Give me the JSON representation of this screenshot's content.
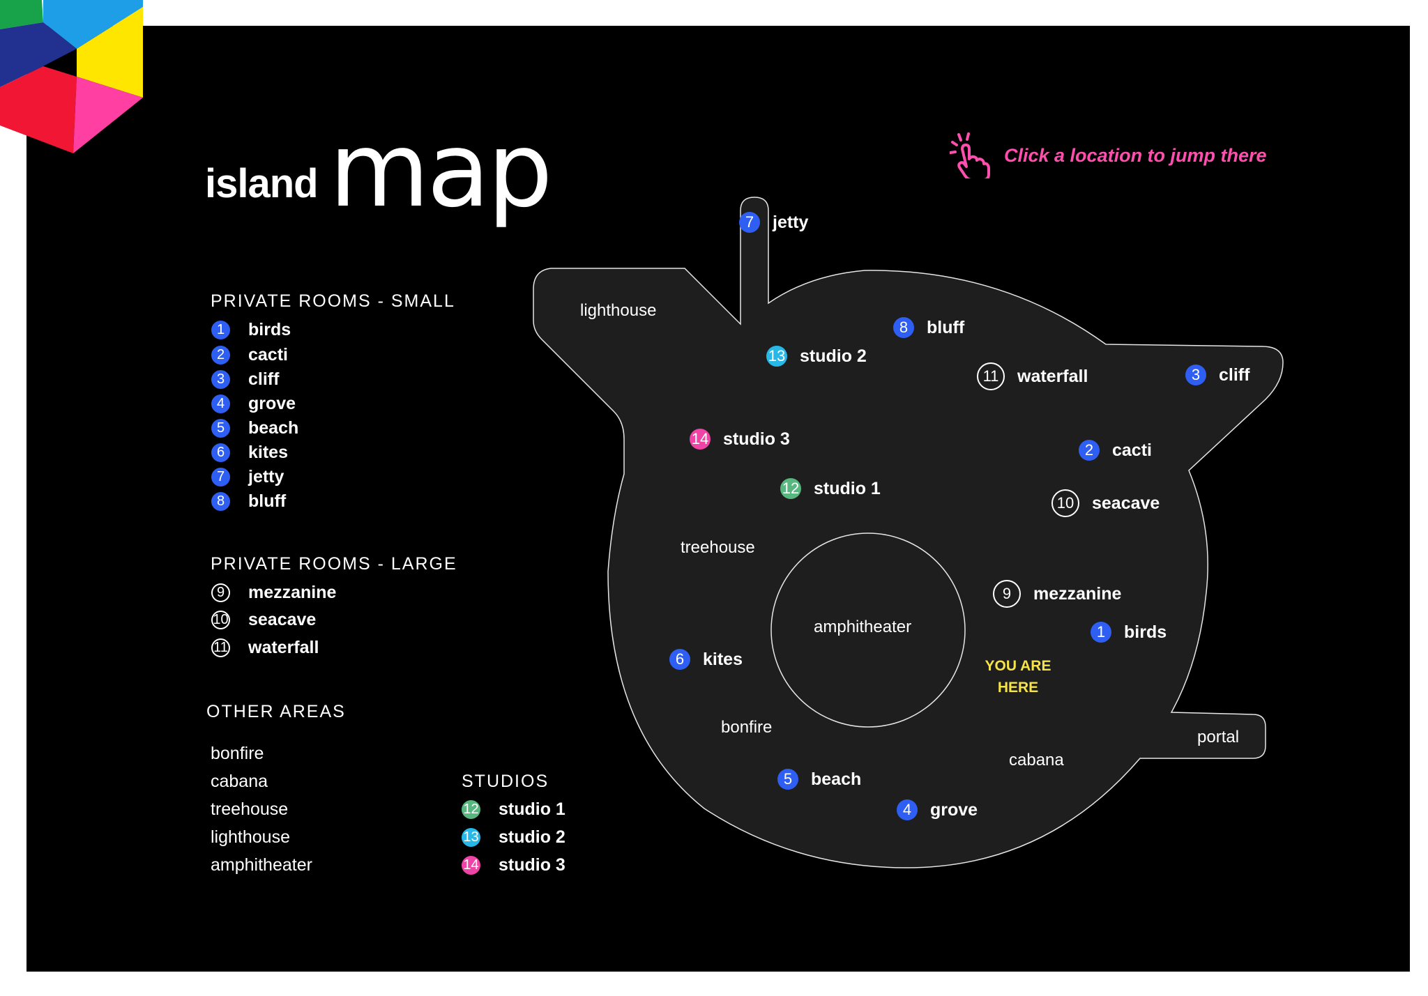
{
  "title": {
    "bold": "island",
    "thin": "map"
  },
  "hint": {
    "text": "Click a location to jump there"
  },
  "colors": {
    "small": "#2f5ff2",
    "studio1": "#57b77e",
    "studio2": "#27b8e8",
    "studio3": "#ef44a5",
    "hint": "#ff4fae",
    "you_are_here": "#f5e34a"
  },
  "legend": {
    "small": {
      "heading": "PRIVATE ROOMS - SMALL",
      "items": [
        {
          "num": "1",
          "label": "birds"
        },
        {
          "num": "2",
          "label": "cacti"
        },
        {
          "num": "3",
          "label": "cliff"
        },
        {
          "num": "4",
          "label": "grove"
        },
        {
          "num": "5",
          "label": "beach"
        },
        {
          "num": "6",
          "label": "kites"
        },
        {
          "num": "7",
          "label": "jetty"
        },
        {
          "num": "8",
          "label": "bluff"
        }
      ]
    },
    "large": {
      "heading": "PRIVATE ROOMS - LARGE",
      "items": [
        {
          "num": "9",
          "label": "mezzanine"
        },
        {
          "num": "10",
          "label": "seacave"
        },
        {
          "num": "11",
          "label": "waterfall"
        }
      ]
    },
    "other": {
      "heading": "OTHER AREAS",
      "items": [
        "bonfire",
        "cabana",
        "treehouse",
        "lighthouse",
        "amphitheater"
      ]
    },
    "studios": {
      "heading": "STUDIOS",
      "items": [
        {
          "num": "12",
          "label": "studio 1"
        },
        {
          "num": "13",
          "label": "studio 2"
        },
        {
          "num": "14",
          "label": "studio 3"
        }
      ]
    }
  },
  "map": {
    "locations": {
      "jetty": {
        "num": "7",
        "label": "jetty"
      },
      "bluff": {
        "num": "8",
        "label": "bluff"
      },
      "studio2": {
        "num": "13",
        "label": "studio 2"
      },
      "waterfall": {
        "num": "11",
        "label": "waterfall"
      },
      "cliff": {
        "num": "3",
        "label": "cliff"
      },
      "studio3": {
        "num": "14",
        "label": "studio 3"
      },
      "cacti": {
        "num": "2",
        "label": "cacti"
      },
      "studio1": {
        "num": "12",
        "label": "studio 1"
      },
      "seacave": {
        "num": "10",
        "label": "seacave"
      },
      "mezzanine": {
        "num": "9",
        "label": "mezzanine"
      },
      "birds": {
        "num": "1",
        "label": "birds"
      },
      "kites": {
        "num": "6",
        "label": "kites"
      },
      "beach": {
        "num": "5",
        "label": "beach"
      },
      "grove": {
        "num": "4",
        "label": "grove"
      }
    },
    "areas": {
      "lighthouse": "lighthouse",
      "treehouse": "treehouse",
      "amphitheater": "amphitheater",
      "bonfire": "bonfire",
      "cabana": "cabana",
      "portal": "portal"
    },
    "you_are_here": {
      "line1": "YOU ARE",
      "line2": "HERE"
    }
  }
}
